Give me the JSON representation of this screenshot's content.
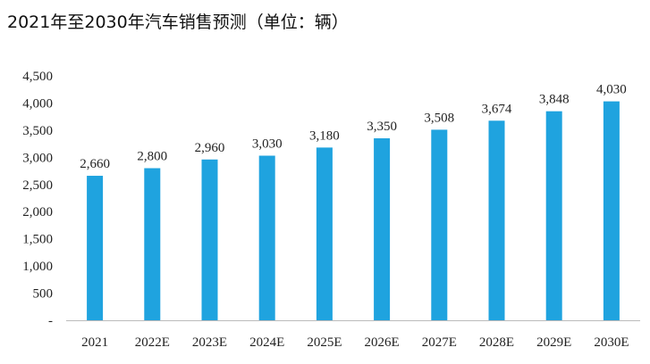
{
  "chart_data": {
    "type": "bar",
    "title": "2021年至2030年汽车销售预测（单位：辆）",
    "categories": [
      "2021",
      "2022E",
      "2023E",
      "2024E",
      "2025E",
      "2026E",
      "2027E",
      "2028E",
      "2029E",
      "2030E"
    ],
    "values": [
      2660,
      2800,
      2960,
      3030,
      3180,
      3350,
      3508,
      3674,
      3848,
      4030
    ],
    "value_labels": [
      "2,660",
      "2,800",
      "2,960",
      "3,030",
      "3,180",
      "3,350",
      "3,508",
      "3,674",
      "3,848",
      "4,030"
    ],
    "ylim": [
      0,
      4500
    ],
    "yticks": [
      0,
      500,
      1000,
      1500,
      2000,
      2500,
      3000,
      3500,
      4000,
      4500
    ],
    "ytick_labels": [
      "-",
      "500",
      "1,000",
      "1,500",
      "2,000",
      "2,500",
      "3,000",
      "3,500",
      "4,000",
      "4,500"
    ],
    "bar_color": "#1fa3df",
    "axis_color": "#bbbbbb",
    "grid": false
  }
}
